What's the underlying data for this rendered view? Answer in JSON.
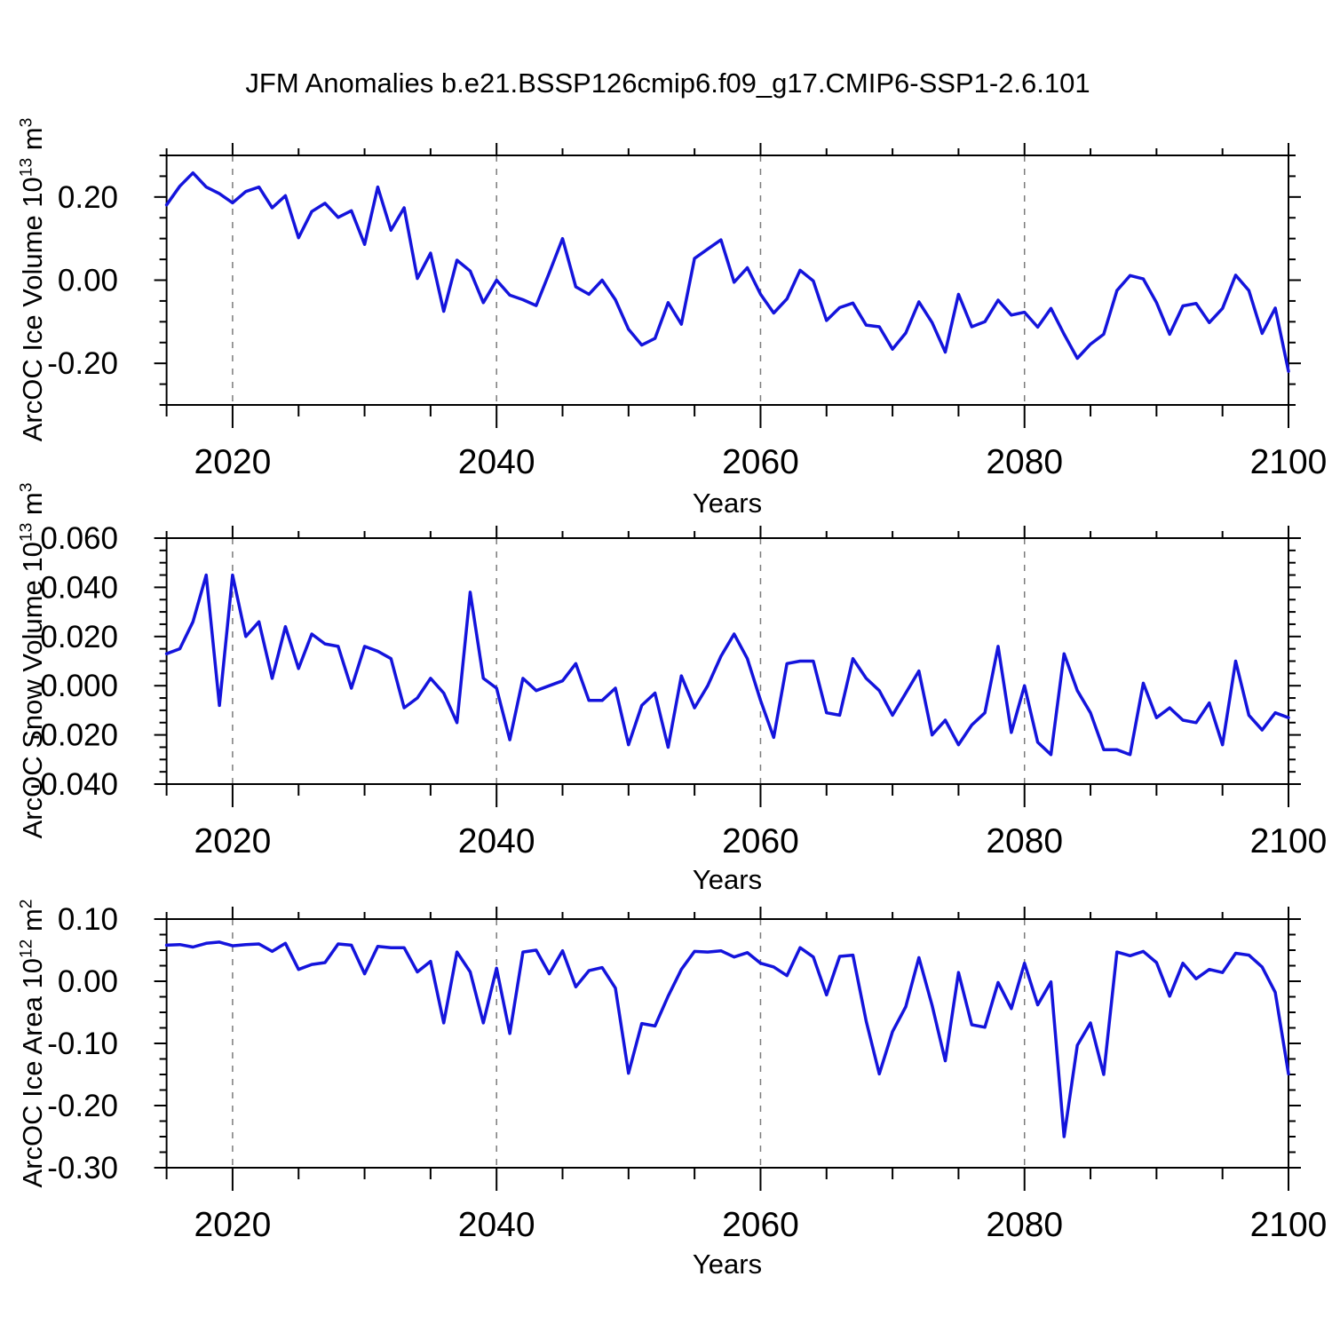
{
  "title": "JFM Anomalies b.e21.BSSP126cmip6.f09_g17.CMIP6-SSP1-2.6.101",
  "colors": {
    "line": "#1414dc",
    "frame": "#000000",
    "grid": "#7b7b7b"
  },
  "chart_data": [
    {
      "type": "line",
      "title": "JFM Anomalies b.e21.BSSP126cmip6.f09_g17.CMIP6-SSP1-2.6.101",
      "xlabel": "Years",
      "ylabel": "ArcOC Ice Volume 10^13 m^3",
      "ylabel_parts": {
        "base": "ArcOC Ice Volume 10",
        "exp1": "13",
        "mid": " m",
        "exp2": "3"
      },
      "x_start": 2015,
      "x_step": 1,
      "xlim": [
        2015,
        2100
      ],
      "ylim": [
        -0.3,
        0.3
      ],
      "xticks": [
        2020,
        2040,
        2060,
        2080,
        2100
      ],
      "x_minor_step": 5,
      "yticks": [
        {
          "v": 0.2,
          "label": "0.20"
        },
        {
          "v": 0.0,
          "label": "0.00"
        },
        {
          "v": -0.2,
          "label": "-0.20"
        }
      ],
      "y_minor_step": 0.05,
      "gridlines_x": [
        2020,
        2040,
        2060,
        2080
      ],
      "grid": true,
      "legend": "none",
      "values": [
        0.181,
        0.226,
        0.258,
        0.224,
        0.208,
        0.186,
        0.213,
        0.224,
        0.174,
        0.203,
        0.102,
        0.165,
        0.185,
        0.151,
        0.167,
        0.086,
        0.224,
        0.12,
        0.174,
        0.004,
        0.065,
        -0.075,
        0.048,
        0.022,
        -0.054,
        0.0,
        -0.036,
        -0.047,
        -0.061,
        0.018,
        0.1,
        -0.016,
        -0.034,
        0.0,
        -0.047,
        -0.118,
        -0.156,
        -0.14,
        -0.054,
        -0.106,
        0.052,
        0.075,
        0.097,
        -0.005,
        0.03,
        -0.034,
        -0.079,
        -0.045,
        0.024,
        -0.002,
        -0.097,
        -0.066,
        -0.055,
        -0.108,
        -0.112,
        -0.166,
        -0.127,
        -0.052,
        -0.102,
        -0.173,
        -0.034,
        -0.112,
        -0.1,
        -0.048,
        -0.084,
        -0.077,
        -0.113,
        -0.068,
        -0.13,
        -0.188,
        -0.154,
        -0.13,
        -0.025,
        0.011,
        0.003,
        -0.054,
        -0.13,
        -0.062,
        -0.056,
        -0.102,
        -0.068,
        0.012,
        -0.025,
        -0.128,
        -0.067,
        -0.219
      ]
    },
    {
      "type": "line",
      "xlabel": "Years",
      "ylabel": "ArcOC Snow Volume 10^13 m^3",
      "ylabel_parts": {
        "base": "ArcOC Snow Volume 10",
        "exp1": "13",
        "mid": " m",
        "exp2": "3"
      },
      "x_start": 2015,
      "x_step": 1,
      "xlim": [
        2015,
        2100
      ],
      "ylim": [
        -0.04,
        0.06
      ],
      "xticks": [
        2020,
        2040,
        2060,
        2080,
        2100
      ],
      "x_minor_step": 5,
      "yticks": [
        {
          "v": 0.06,
          "label": "0.060"
        },
        {
          "v": 0.04,
          "label": "0.040"
        },
        {
          "v": 0.02,
          "label": "0.020"
        },
        {
          "v": 0.0,
          "label": "0.000"
        },
        {
          "v": -0.02,
          "label": "-0.020"
        },
        {
          "v": -0.04,
          "label": "-0.040"
        }
      ],
      "y_minor_step": 0.005,
      "gridlines_x": [
        2020,
        2040,
        2060,
        2080
      ],
      "grid": true,
      "legend": "none",
      "values": [
        0.013,
        0.015,
        0.026,
        0.045,
        -0.008,
        0.045,
        0.02,
        0.026,
        0.003,
        0.024,
        0.007,
        0.021,
        0.017,
        0.016,
        -0.001,
        0.016,
        0.014,
        0.011,
        -0.009,
        -0.005,
        0.003,
        -0.003,
        -0.015,
        0.038,
        0.003,
        -0.001,
        -0.022,
        0.003,
        -0.002,
        0.0,
        0.002,
        0.009,
        -0.006,
        -0.006,
        -0.001,
        -0.024,
        -0.008,
        -0.003,
        -0.025,
        0.004,
        -0.009,
        0.0,
        0.012,
        0.021,
        0.011,
        -0.006,
        -0.021,
        0.009,
        0.01,
        0.01,
        -0.011,
        -0.012,
        0.011,
        0.003,
        -0.002,
        -0.012,
        -0.003,
        0.006,
        -0.02,
        -0.014,
        -0.024,
        -0.016,
        -0.011,
        0.016,
        -0.019,
        0.0,
        -0.023,
        -0.028,
        0.013,
        -0.002,
        -0.011,
        -0.026,
        -0.026,
        -0.028,
        0.001,
        -0.013,
        -0.009,
        -0.014,
        -0.015,
        -0.007,
        -0.024,
        0.01,
        -0.012,
        -0.018,
        -0.011,
        -0.013
      ]
    },
    {
      "type": "line",
      "xlabel": "Years",
      "ylabel": "ArcOC Ice Area 10^12 m^2",
      "ylabel_parts": {
        "base": "ArcOC Ice Area 10",
        "exp1": "12",
        "mid": " m",
        "exp2": "2"
      },
      "x_start": 2015,
      "x_step": 1,
      "xlim": [
        2015,
        2100
      ],
      "ylim": [
        -0.3,
        0.1
      ],
      "xticks": [
        2020,
        2040,
        2060,
        2080,
        2100
      ],
      "x_minor_step": 5,
      "yticks": [
        {
          "v": 0.1,
          "label": "0.10"
        },
        {
          "v": 0.0,
          "label": "0.00"
        },
        {
          "v": -0.1,
          "label": "-0.10"
        },
        {
          "v": -0.2,
          "label": "-0.20"
        },
        {
          "v": -0.3,
          "label": "-0.30"
        }
      ],
      "y_minor_step": 0.025,
      "gridlines_x": [
        2020,
        2040,
        2060,
        2080
      ],
      "grid": true,
      "legend": "none",
      "values": [
        0.058,
        0.059,
        0.055,
        0.061,
        0.063,
        0.057,
        0.059,
        0.06,
        0.048,
        0.061,
        0.019,
        0.027,
        0.03,
        0.06,
        0.058,
        0.012,
        0.056,
        0.054,
        0.054,
        0.015,
        0.032,
        -0.067,
        0.047,
        0.015,
        -0.067,
        0.021,
        -0.084,
        0.047,
        0.05,
        0.012,
        0.049,
        -0.009,
        0.017,
        0.022,
        -0.011,
        -0.148,
        -0.068,
        -0.072,
        -0.024,
        0.019,
        0.048,
        0.047,
        0.049,
        0.039,
        0.046,
        0.029,
        0.023,
        0.009,
        0.054,
        0.039,
        -0.022,
        0.04,
        0.042,
        -0.064,
        -0.149,
        -0.081,
        -0.041,
        0.038,
        -0.039,
        -0.128,
        0.014,
        -0.07,
        -0.074,
        -0.002,
        -0.044,
        0.029,
        -0.038,
        -0.001,
        -0.25,
        -0.103,
        -0.067,
        -0.15,
        0.047,
        0.041,
        0.048,
        0.03,
        -0.024,
        0.029,
        0.004,
        0.019,
        0.014,
        0.045,
        0.042,
        0.023,
        -0.018,
        -0.149
      ]
    }
  ]
}
